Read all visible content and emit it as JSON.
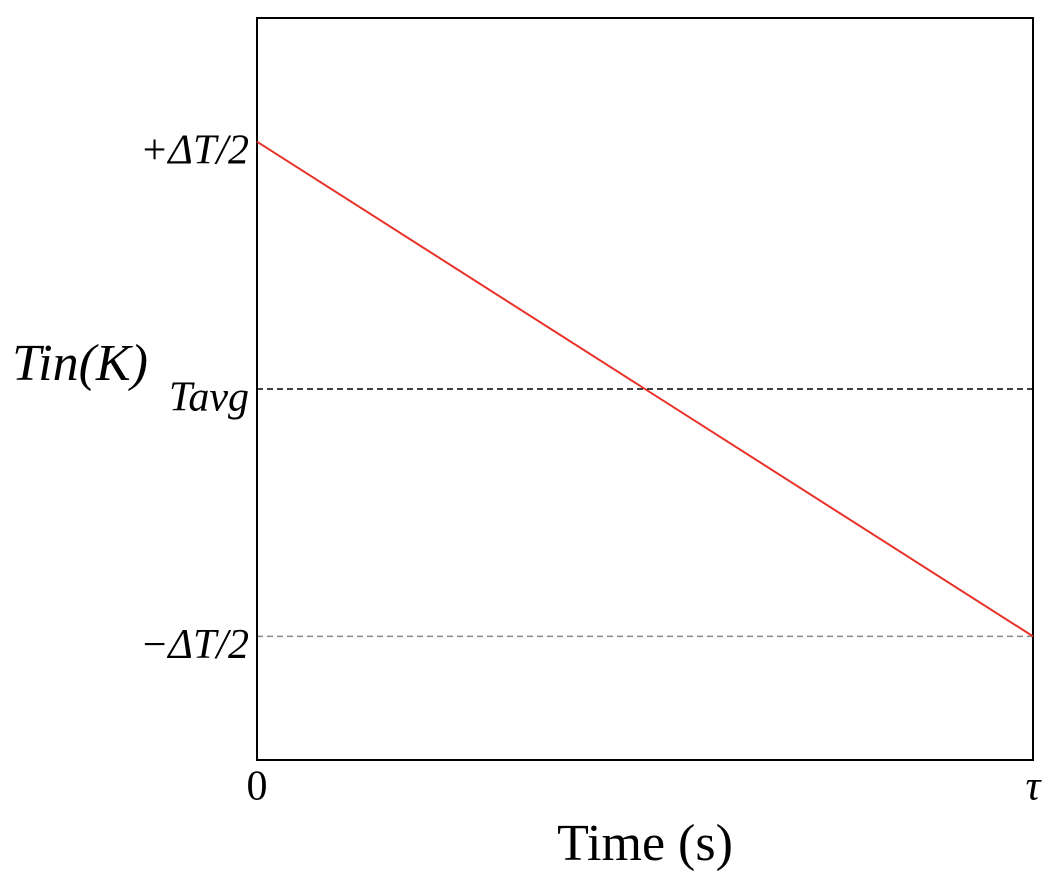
{
  "chart_data": {
    "type": "line",
    "x_label": "Time (s)",
    "y_label": "Tin(K)",
    "x": [
      0,
      1
    ],
    "series": [
      {
        "name": "Tin",
        "color": "#e8322a",
        "values": [
          1,
          -1
        ]
      }
    ],
    "xlim": [
      0,
      1
    ],
    "xticks": [
      0,
      {
        "value": 1,
        "label": "τ"
      }
    ],
    "ylim": [
      -1.5,
      1.5
    ],
    "yticks": [
      {
        "value": -1,
        "label": "−ΔT/2"
      },
      {
        "value": 0,
        "label": "Tavg"
      },
      {
        "value": 1,
        "label": "+ΔT/2"
      }
    ],
    "hlines": [
      {
        "y": 0,
        "color": "#000000"
      },
      {
        "y": -1,
        "color": "#888888"
      }
    ]
  }
}
